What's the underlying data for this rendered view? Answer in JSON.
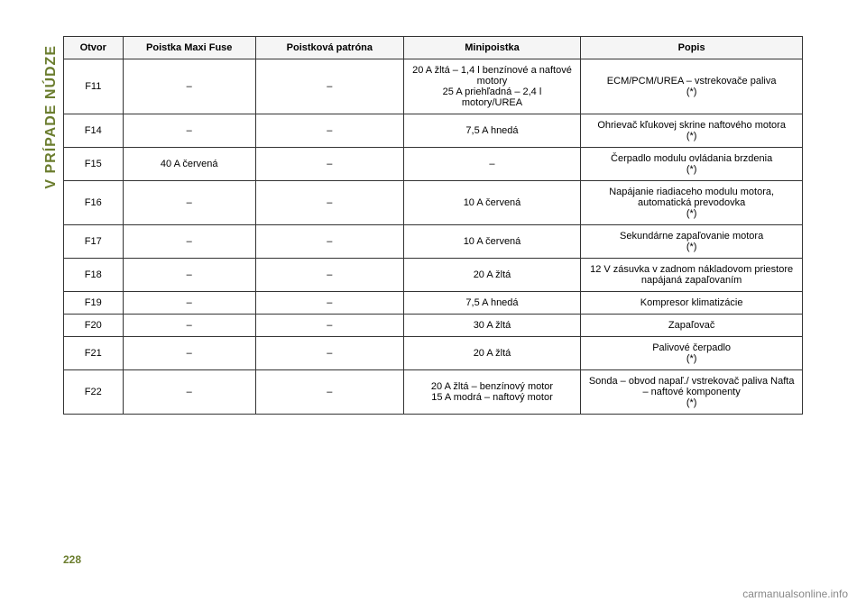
{
  "side_label_text": "V PRÍPADE NÚDZE",
  "side_label_color": "#6b7d2e",
  "page_number": "228",
  "page_number_color": "#6b7d2e",
  "footer_link_text": "carmanualsonline.info",
  "table": {
    "header_bg": "#f5f5f5",
    "border_color": "#333333",
    "columns": [
      {
        "key": "otvor",
        "label": "Otvor"
      },
      {
        "key": "maxi",
        "label": "Poistka Maxi Fuse"
      },
      {
        "key": "car",
        "label": "Poistková patróna"
      },
      {
        "key": "mini",
        "label": "Minipoistka"
      },
      {
        "key": "popis",
        "label": "Popis"
      }
    ],
    "rows": [
      {
        "otvor": "F11",
        "maxi": "–",
        "car": "–",
        "mini": "20 A žltá – 1,4 l benzínové a naftové motory\n25 A priehľadná – 2,4 l motory/UREA",
        "popis": "ECM/PCM/UREA – vstrekovače paliva\n(*)"
      },
      {
        "otvor": "F14",
        "maxi": "–",
        "car": "–",
        "mini": "7,5 A hnedá",
        "popis": "Ohrievač kľukovej skrine naftového motora\n(*)"
      },
      {
        "otvor": "F15",
        "maxi": "40 A červená",
        "car": "–",
        "mini": "–",
        "popis": "Čerpadlo modulu ovládania brzdenia\n(*)"
      },
      {
        "otvor": "F16",
        "maxi": "–",
        "car": "–",
        "mini": "10 A červená",
        "popis": "Napájanie riadiaceho modulu motora, automatická prevodovka\n(*)"
      },
      {
        "otvor": "F17",
        "maxi": "–",
        "car": "–",
        "mini": "10 A červená",
        "popis": "Sekundárne zapaľovanie motora\n(*)"
      },
      {
        "otvor": "F18",
        "maxi": "–",
        "car": "–",
        "mini": "20 A žltá",
        "popis": "12 V zásuvka v zadnom nákladovom priestore napájaná zapaľovaním"
      },
      {
        "otvor": "F19",
        "maxi": "–",
        "car": "–",
        "mini": "7,5 A hnedá",
        "popis": "Kompresor klimatizácie"
      },
      {
        "otvor": "F20",
        "maxi": "–",
        "car": "–",
        "mini": "30 A žltá",
        "popis": "Zapaľovač"
      },
      {
        "otvor": "F21",
        "maxi": "–",
        "car": "–",
        "mini": "20 A žltá",
        "popis": "Palivové čerpadlo\n(*)"
      },
      {
        "otvor": "F22",
        "maxi": "–",
        "car": "–",
        "mini": "20 A žltá – benzínový motor\n15 A modrá – naftový motor",
        "popis": "Sonda – obvod napaľ./ vstrekovač paliva Nafta – naftové komponenty\n(*)"
      }
    ]
  }
}
